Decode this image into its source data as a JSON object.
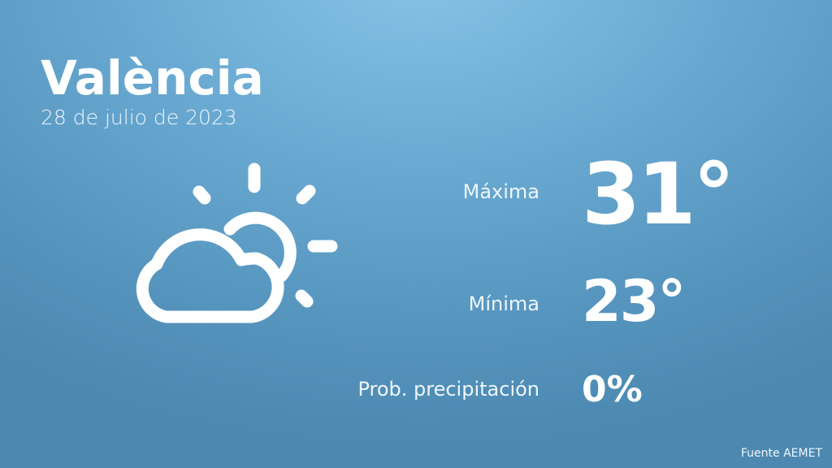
{
  "location": {
    "city": "València",
    "date": "28 de julio de 2023"
  },
  "weather_icon": "partly-cloudy-sun-icon",
  "forecast": {
    "max_label": "Máxima",
    "max_value": "31°",
    "min_label": "Mínima",
    "min_value": "23°",
    "precip_label": "Prob. precipitación",
    "precip_value": "0%"
  },
  "source": "Fuente AEMET",
  "colors": {
    "background_top": "#86c4e6",
    "background_bottom": "#4c88b0",
    "text": "#ffffff"
  }
}
